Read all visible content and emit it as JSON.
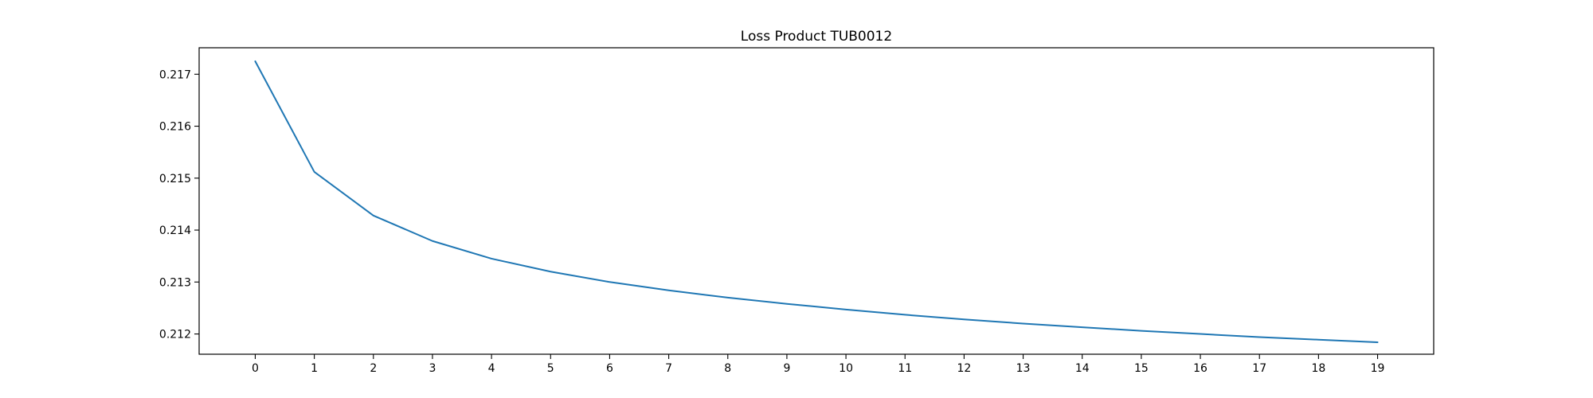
{
  "chart_data": {
    "type": "line",
    "title": "Loss Product TUB0012",
    "xlabel": "",
    "ylabel": "",
    "x": [
      0,
      1,
      2,
      3,
      4,
      5,
      6,
      7,
      8,
      9,
      10,
      11,
      12,
      13,
      14,
      15,
      16,
      17,
      18,
      19
    ],
    "series": [
      {
        "values": [
          0.21725,
          0.21512,
          0.21428,
          0.21379,
          0.21345,
          0.2132,
          0.213,
          0.21284,
          0.2127,
          0.21258,
          0.21247,
          0.21237,
          0.21228,
          0.2122,
          0.21213,
          0.21206,
          0.212,
          0.21194,
          0.21189,
          0.21184
        ],
        "color": "#1f77b4"
      }
    ],
    "xticks": [
      "0",
      "1",
      "2",
      "3",
      "4",
      "5",
      "6",
      "7",
      "8",
      "9",
      "10",
      "11",
      "12",
      "13",
      "14",
      "15",
      "16",
      "17",
      "18",
      "19"
    ],
    "yticks": [
      {
        "value": 0.212,
        "label": "0.212"
      },
      {
        "value": 0.213,
        "label": "0.213"
      },
      {
        "value": 0.214,
        "label": "0.214"
      },
      {
        "value": 0.215,
        "label": "0.215"
      },
      {
        "value": 0.216,
        "label": "0.216"
      },
      {
        "value": 0.217,
        "label": "0.217"
      }
    ],
    "xlim": [
      -0.95,
      19.95
    ],
    "ylim": [
      0.21161,
      0.21751
    ],
    "grid": false,
    "legend": "none"
  }
}
